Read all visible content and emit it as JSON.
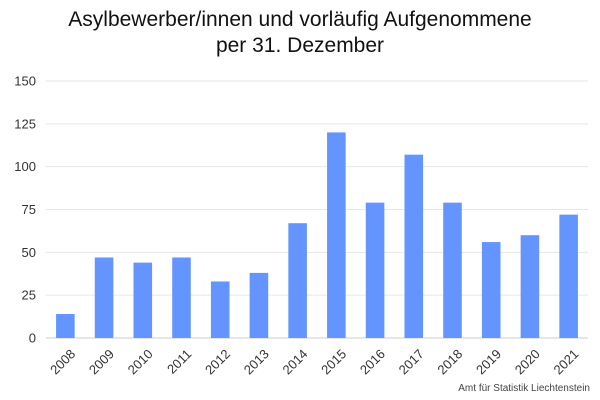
{
  "chart_data": {
    "type": "bar",
    "title_lines": [
      "Asylbewerber/innen und vorläufig Aufgenommene",
      "per 31. Dezember"
    ],
    "categories": [
      "2008",
      "2009",
      "2010",
      "2011",
      "2012",
      "2013",
      "2014",
      "2015",
      "2016",
      "2017",
      "2018",
      "2019",
      "2020",
      "2021"
    ],
    "values": [
      14,
      47,
      44,
      47,
      33,
      38,
      67,
      120,
      79,
      107,
      79,
      56,
      60,
      72
    ],
    "xlabel": "",
    "ylabel": "",
    "ylim": [
      0,
      150
    ],
    "yticks": [
      0,
      25,
      50,
      75,
      100,
      125,
      150
    ],
    "grid": true,
    "legend": "none",
    "bar_color": "#6495ff",
    "source": "Amt für Statistik Liechtenstein"
  }
}
